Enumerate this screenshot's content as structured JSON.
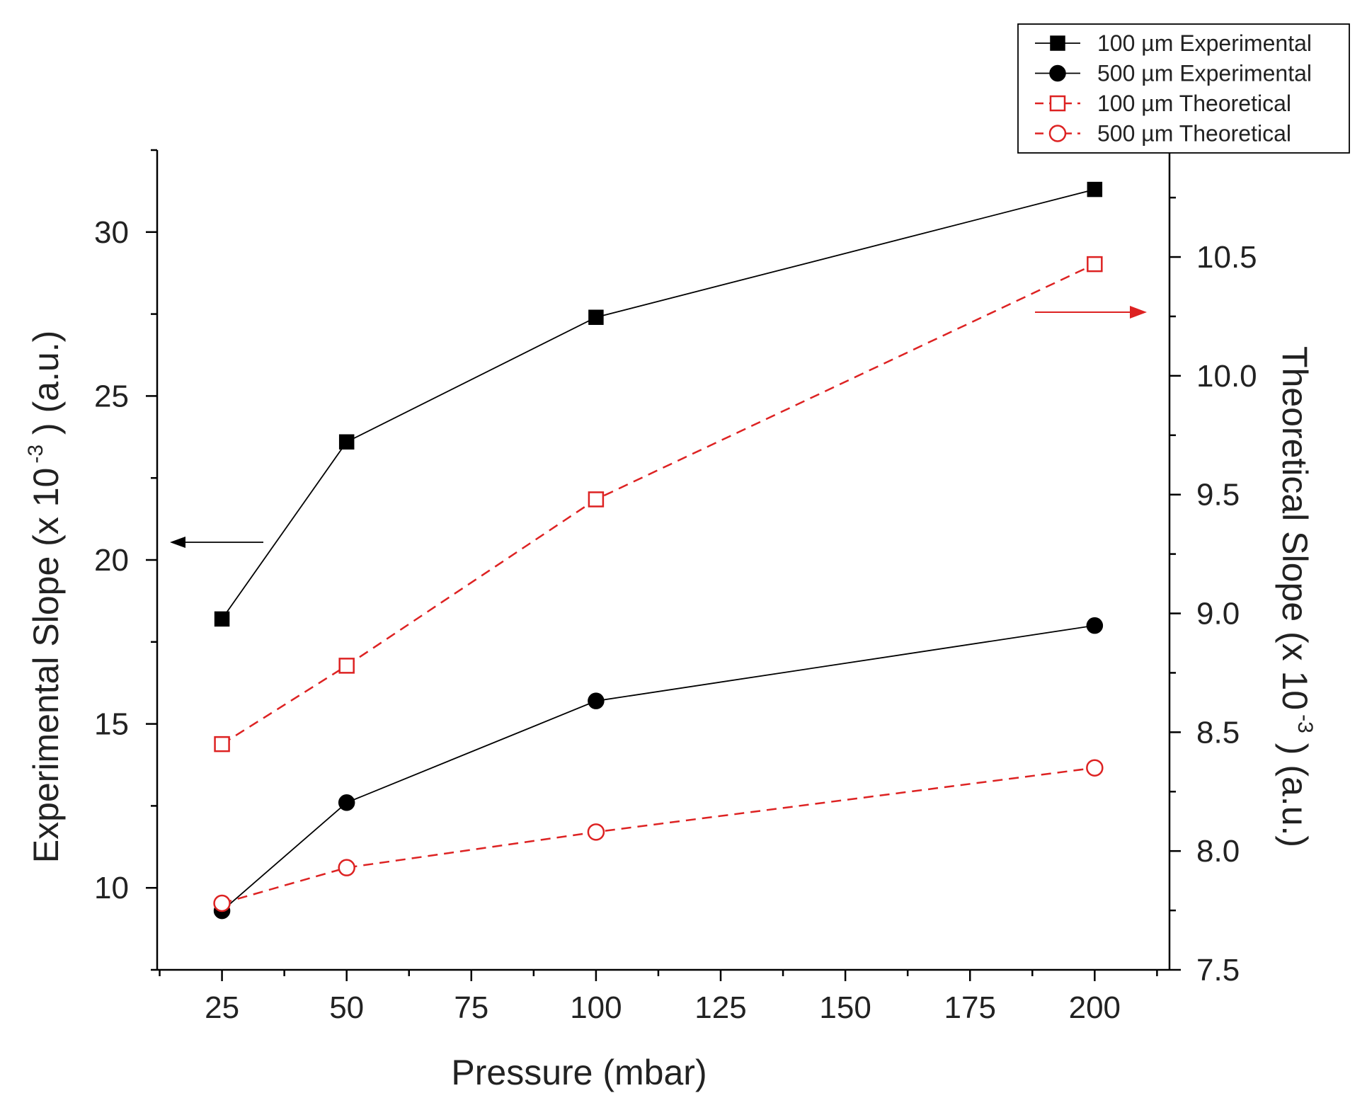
{
  "chart_data": {
    "type": "line",
    "x": [
      25,
      50,
      100,
      200
    ],
    "xlabel": "Pressure (mbar)",
    "xlim": [
      12,
      215
    ],
    "xticks": [
      25,
      50,
      75,
      100,
      125,
      150,
      175,
      200
    ],
    "y_left": {
      "label_main": "Experimental Slope (x 10",
      "label_sup": "-3",
      "label_tail": ") (a.u.)",
      "ylim": [
        7.5,
        32.5
      ],
      "ticks": [
        10,
        15,
        20,
        25,
        30
      ]
    },
    "y_right": {
      "label_main": "Theoretical Slope (x 10",
      "label_sup": "-3",
      "label_tail": ") (a.u.)",
      "ylim": [
        7.5,
        10.95
      ],
      "ticks": [
        "7.5",
        "8.0",
        "8.5",
        "9.0",
        "9.5",
        "10.0",
        "10.5"
      ]
    },
    "series": [
      {
        "name": "100 µm Experimental",
        "axis": "left",
        "style": "solid",
        "marker": "square",
        "filled": true,
        "color": "#000000",
        "values": [
          18.2,
          23.6,
          27.4,
          31.3
        ]
      },
      {
        "name": "500 µm Experimental",
        "axis": "left",
        "style": "solid",
        "marker": "circle",
        "filled": true,
        "color": "#000000",
        "values": [
          9.3,
          12.6,
          15.7,
          18.0
        ]
      },
      {
        "name": "100 µm Theoretical",
        "axis": "right",
        "style": "dashed",
        "marker": "square",
        "filled": false,
        "color": "#dd2222",
        "values": [
          8.45,
          8.78,
          9.48,
          10.47
        ]
      },
      {
        "name": "500 µm Theoretical",
        "axis": "right",
        "style": "dashed",
        "marker": "circle",
        "filled": false,
        "color": "#dd2222",
        "values": [
          7.78,
          7.93,
          8.08,
          8.35
        ]
      }
    ],
    "legend_position": "top-right",
    "annotations": [
      {
        "name": "left-axis-arrow",
        "direction": "left",
        "color": "#000000"
      },
      {
        "name": "right-axis-arrow",
        "direction": "right",
        "color": "#dd2222"
      }
    ]
  }
}
